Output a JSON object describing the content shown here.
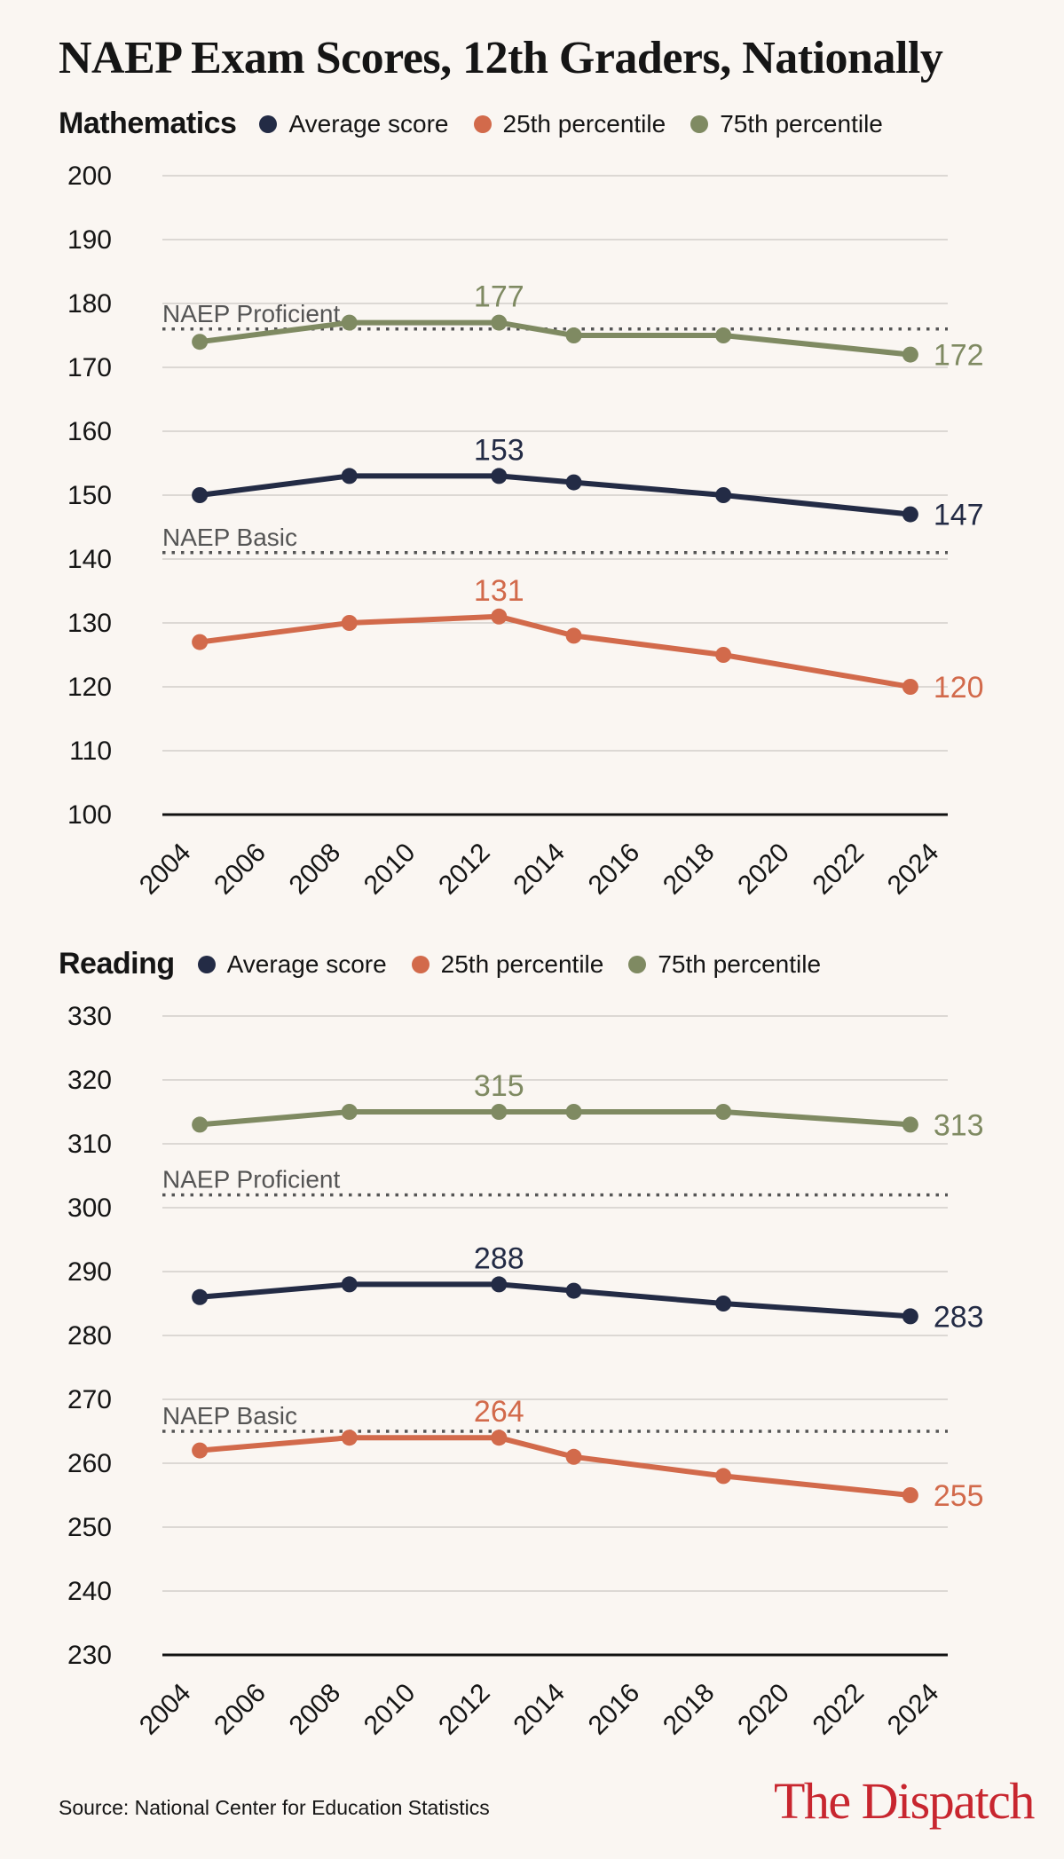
{
  "title": "NAEP Exam Scores, 12th Graders, Nationally",
  "source": "Source: National Center for Education Statistics",
  "brand": "The Dispatch",
  "colors": {
    "average": "#232b45",
    "p25": "#d26a4b",
    "p75": "#7f8a62",
    "reference": "#555555",
    "grid": "#c9c6c2",
    "background": "#faf6f2"
  },
  "legend": {
    "average_label": "Average score",
    "p25_label": "25th percentile",
    "p75_label": "75th percentile"
  },
  "chart_data": [
    {
      "type": "line",
      "title": "Mathematics",
      "x": [
        2005,
        2009,
        2013,
        2015,
        2019,
        2024
      ],
      "xticks": [
        "2004",
        "2006",
        "2008",
        "2010",
        "2012",
        "2014",
        "2016",
        "2018",
        "2020",
        "2022",
        "2024"
      ],
      "xlim": [
        2004,
        2025
      ],
      "ylim": [
        100,
        200
      ],
      "yticks": [
        "100",
        "110",
        "120",
        "130",
        "140",
        "150",
        "160",
        "170",
        "180",
        "190",
        "200"
      ],
      "grid": true,
      "legend_position": "top",
      "series": [
        {
          "key": "p75",
          "name": "75th percentile",
          "values": [
            174,
            177,
            177,
            175,
            175,
            172
          ]
        },
        {
          "key": "average",
          "name": "Average score",
          "values": [
            150,
            153,
            153,
            152,
            150,
            147
          ]
        },
        {
          "key": "p25",
          "name": "25th percentile",
          "values": [
            127,
            130,
            131,
            128,
            125,
            120
          ]
        }
      ],
      "annotations": [
        {
          "series": "p75",
          "x": 2013,
          "value": 177,
          "text": "177",
          "placement": "above"
        },
        {
          "series": "p75",
          "x": 2024,
          "value": 172,
          "text": "172",
          "placement": "right"
        },
        {
          "series": "average",
          "x": 2013,
          "value": 153,
          "text": "153",
          "placement": "above"
        },
        {
          "series": "average",
          "x": 2024,
          "value": 147,
          "text": "147",
          "placement": "right"
        },
        {
          "series": "p25",
          "x": 2013,
          "value": 131,
          "text": "131",
          "placement": "above"
        },
        {
          "series": "p25",
          "x": 2024,
          "value": 120,
          "text": "120",
          "placement": "right"
        }
      ],
      "reference_lines": [
        {
          "label": "NAEP Proficient",
          "value": 176
        },
        {
          "label": "NAEP Basic",
          "value": 141
        }
      ]
    },
    {
      "type": "line",
      "title": "Reading",
      "x": [
        2005,
        2009,
        2013,
        2015,
        2019,
        2024
      ],
      "xticks": [
        "2004",
        "2006",
        "2008",
        "2010",
        "2012",
        "2014",
        "2016",
        "2018",
        "2020",
        "2022",
        "2024"
      ],
      "xlim": [
        2004,
        2025
      ],
      "ylim": [
        230,
        330
      ],
      "yticks": [
        "230",
        "240",
        "250",
        "260",
        "270",
        "280",
        "290",
        "300",
        "310",
        "320",
        "330"
      ],
      "grid": true,
      "legend_position": "top",
      "series": [
        {
          "key": "p75",
          "name": "75th percentile",
          "values": [
            313,
            315,
            315,
            315,
            315,
            313
          ]
        },
        {
          "key": "average",
          "name": "Average score",
          "values": [
            286,
            288,
            288,
            287,
            285,
            283
          ]
        },
        {
          "key": "p25",
          "name": "25th percentile",
          "values": [
            262,
            264,
            264,
            261,
            258,
            255
          ]
        }
      ],
      "annotations": [
        {
          "series": "p75",
          "x": 2013,
          "value": 315,
          "text": "315",
          "placement": "above"
        },
        {
          "series": "p75",
          "x": 2024,
          "value": 313,
          "text": "313",
          "placement": "right"
        },
        {
          "series": "average",
          "x": 2013,
          "value": 288,
          "text": "288",
          "placement": "above"
        },
        {
          "series": "average",
          "x": 2024,
          "value": 283,
          "text": "283",
          "placement": "right"
        },
        {
          "series": "p25",
          "x": 2013,
          "value": 264,
          "text": "264",
          "placement": "above"
        },
        {
          "series": "p25",
          "x": 2024,
          "value": 255,
          "text": "255",
          "placement": "right"
        }
      ],
      "reference_lines": [
        {
          "label": "NAEP Proficient",
          "value": 302
        },
        {
          "label": "NAEP Basic",
          "value": 265
        }
      ]
    }
  ]
}
